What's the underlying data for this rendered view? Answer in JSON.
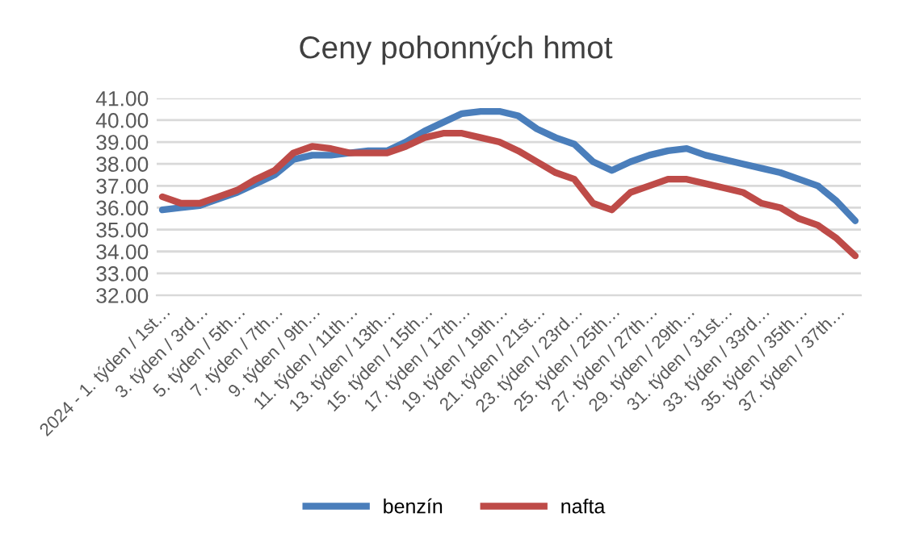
{
  "chart_data": {
    "type": "line",
    "title": "Ceny pohonných hmot",
    "categories": [
      "2024 - 1. týden / 1st…",
      null,
      "3. týden / 3rd…",
      null,
      "5. týden / 5th…",
      null,
      "7. týden / 7th…",
      null,
      "9. týden / 9th…",
      null,
      "11. týden / 11th…",
      null,
      "13. týden / 13th…",
      null,
      "15. týden / 15th…",
      null,
      "17. týden / 17th…",
      null,
      "19. týden / 19th…",
      null,
      "21. týden / 21st…",
      null,
      "23. týden / 23rd…",
      null,
      "25. týden / 25th…",
      null,
      "27. týden / 27th…",
      null,
      "29. týden / 29th…",
      null,
      "31. týden / 31st…",
      null,
      "33. týden / 33rd…",
      null,
      "35. týden / 35th…",
      null,
      "37. týden / 37th…",
      null
    ],
    "series": [
      {
        "name": "benzín",
        "color": "#4a7ebb",
        "values": [
          35.9,
          36.0,
          36.1,
          36.4,
          36.7,
          37.1,
          37.5,
          38.2,
          38.4,
          38.4,
          38.5,
          38.6,
          38.6,
          39.0,
          39.5,
          39.9,
          40.3,
          40.4,
          40.4,
          40.2,
          39.6,
          39.2,
          38.9,
          38.1,
          37.7,
          38.1,
          38.4,
          38.6,
          38.7,
          38.4,
          38.2,
          38.0,
          37.8,
          37.6,
          37.3,
          37.0,
          36.3,
          35.4
        ]
      },
      {
        "name": "nafta",
        "color": "#be4b48",
        "values": [
          36.5,
          36.2,
          36.2,
          36.5,
          36.8,
          37.3,
          37.7,
          38.5,
          38.8,
          38.7,
          38.5,
          38.5,
          38.5,
          38.8,
          39.2,
          39.4,
          39.4,
          39.2,
          39.0,
          38.6,
          38.1,
          37.6,
          37.3,
          36.2,
          35.9,
          36.7,
          37.0,
          37.3,
          37.3,
          37.1,
          36.9,
          36.7,
          36.2,
          36.0,
          35.5,
          35.2,
          34.6,
          33.8
        ]
      }
    ],
    "ylim": [
      32,
      41
    ],
    "yticks": [
      {
        "value": 32,
        "label": "32.00"
      },
      {
        "value": 33,
        "label": "33.00"
      },
      {
        "value": 34,
        "label": "34.00"
      },
      {
        "value": 35,
        "label": "35.00"
      },
      {
        "value": 36,
        "label": "36.00"
      },
      {
        "value": 37,
        "label": "37.00"
      },
      {
        "value": 38,
        "label": "38.00"
      },
      {
        "value": 39,
        "label": "39.00"
      },
      {
        "value": 40,
        "label": "40.00"
      },
      {
        "value": 41,
        "label": "41.00"
      }
    ],
    "grid": "y",
    "legend": "bottom",
    "marker": "none",
    "line_style": "solid"
  }
}
